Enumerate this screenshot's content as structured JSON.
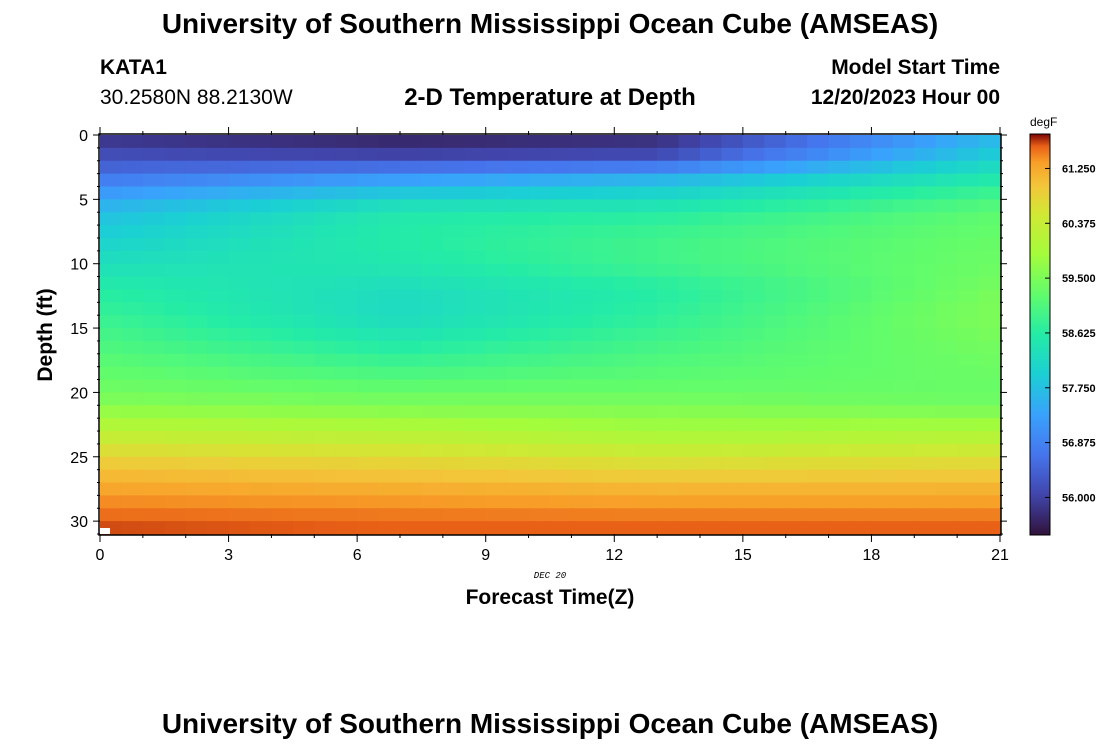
{
  "header": {
    "title": "University of Southern Mississippi Ocean Cube (AMSEAS)",
    "station": "KATA1",
    "coords": "30.2580N  88.2130W",
    "subtitle": "2-D Temperature at Depth",
    "start_label": "Model Start Time",
    "start_value": "12/20/2023 Hour 00"
  },
  "footer": {
    "title": "University of Southern Mississippi Ocean Cube (AMSEAS)"
  },
  "chart_data": {
    "type": "heatmap",
    "title": "2-D Temperature at Depth",
    "xlabel": "Forecast Time(Z)",
    "ylabel": "Depth (ft)",
    "xlim": [
      0,
      21
    ],
    "ylim": [
      31,
      0
    ],
    "xticks": [
      "0",
      "3",
      "6",
      "9",
      "12",
      "15",
      "18",
      "21"
    ],
    "yticks": [
      "0",
      "5",
      "10",
      "15",
      "20",
      "25",
      "30"
    ],
    "date_marker": "DEC 20",
    "colorbar": {
      "label": "degF",
      "range": [
        55.4,
        61.8
      ],
      "ticks": [
        "61.250",
        "60.375",
        "59.500",
        "58.625",
        "57.750",
        "56.875",
        "56.000"
      ]
    },
    "depth_profile": {
      "depth_ft": [
        0,
        1,
        2,
        3,
        4,
        5,
        6,
        8,
        10,
        12,
        14,
        16,
        18,
        20,
        21,
        22,
        23,
        24,
        25,
        26,
        27,
        28,
        29,
        30,
        31
      ],
      "hour_0": [
        55.8,
        56.0,
        56.3,
        56.6,
        57.0,
        57.4,
        57.7,
        58.0,
        58.3,
        58.6,
        58.8,
        59.0,
        59.2,
        59.4,
        59.6,
        59.9,
        60.2,
        60.5,
        60.8,
        61.0,
        61.2,
        61.35,
        61.5,
        61.6,
        61.7
      ],
      "hour_7": [
        55.6,
        55.8,
        56.2,
        57.0,
        57.6,
        58.1,
        58.5,
        58.6,
        58.5,
        58.25,
        58.2,
        58.5,
        58.9,
        59.3,
        59.5,
        59.8,
        60.1,
        60.4,
        60.7,
        60.9,
        61.1,
        61.3,
        61.45,
        61.55,
        61.65
      ],
      "hour_13": [
        55.7,
        55.9,
        56.3,
        57.3,
        57.9,
        58.2,
        58.6,
        58.9,
        58.9,
        58.6,
        58.7,
        58.9,
        59.1,
        59.3,
        59.5,
        59.7,
        59.9,
        60.2,
        60.5,
        60.8,
        61.0,
        61.25,
        61.4,
        61.55,
        61.65
      ],
      "hour_21": [
        57.6,
        57.8,
        58.1,
        58.4,
        58.7,
        59.0,
        59.2,
        59.3,
        59.35,
        59.45,
        59.55,
        59.45,
        59.35,
        59.3,
        59.4,
        59.7,
        60.0,
        60.3,
        60.6,
        60.85,
        61.05,
        61.25,
        61.4,
        61.55,
        61.65
      ]
    }
  }
}
